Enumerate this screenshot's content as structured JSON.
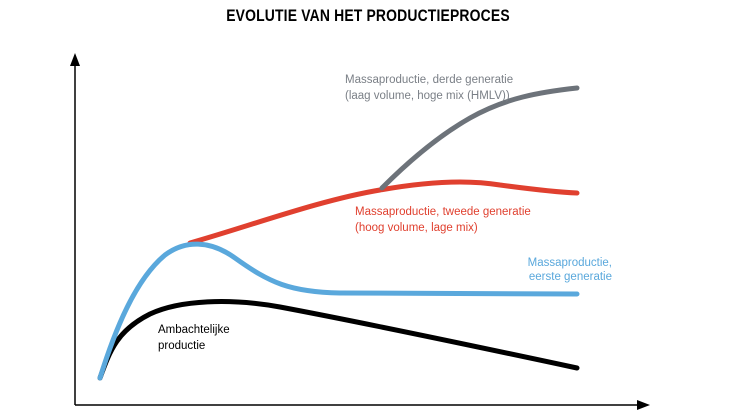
{
  "title": "EVOLUTIE VAN HET PRODUCTIEPROCES",
  "curves": [
    {
      "lines": [
        "Massaproductie, derde generatie",
        "(laag volume, hoge mix (HMLV))"
      ]
    },
    {
      "lines": [
        "Massaproductie, tweede generatie",
        "(hoog volume, lage mix)"
      ]
    },
    {
      "lines": [
        "Massaproductie,",
        "eerste generatie"
      ]
    },
    {
      "lines": [
        "Ambachtelijke",
        "productie"
      ]
    }
  ]
}
